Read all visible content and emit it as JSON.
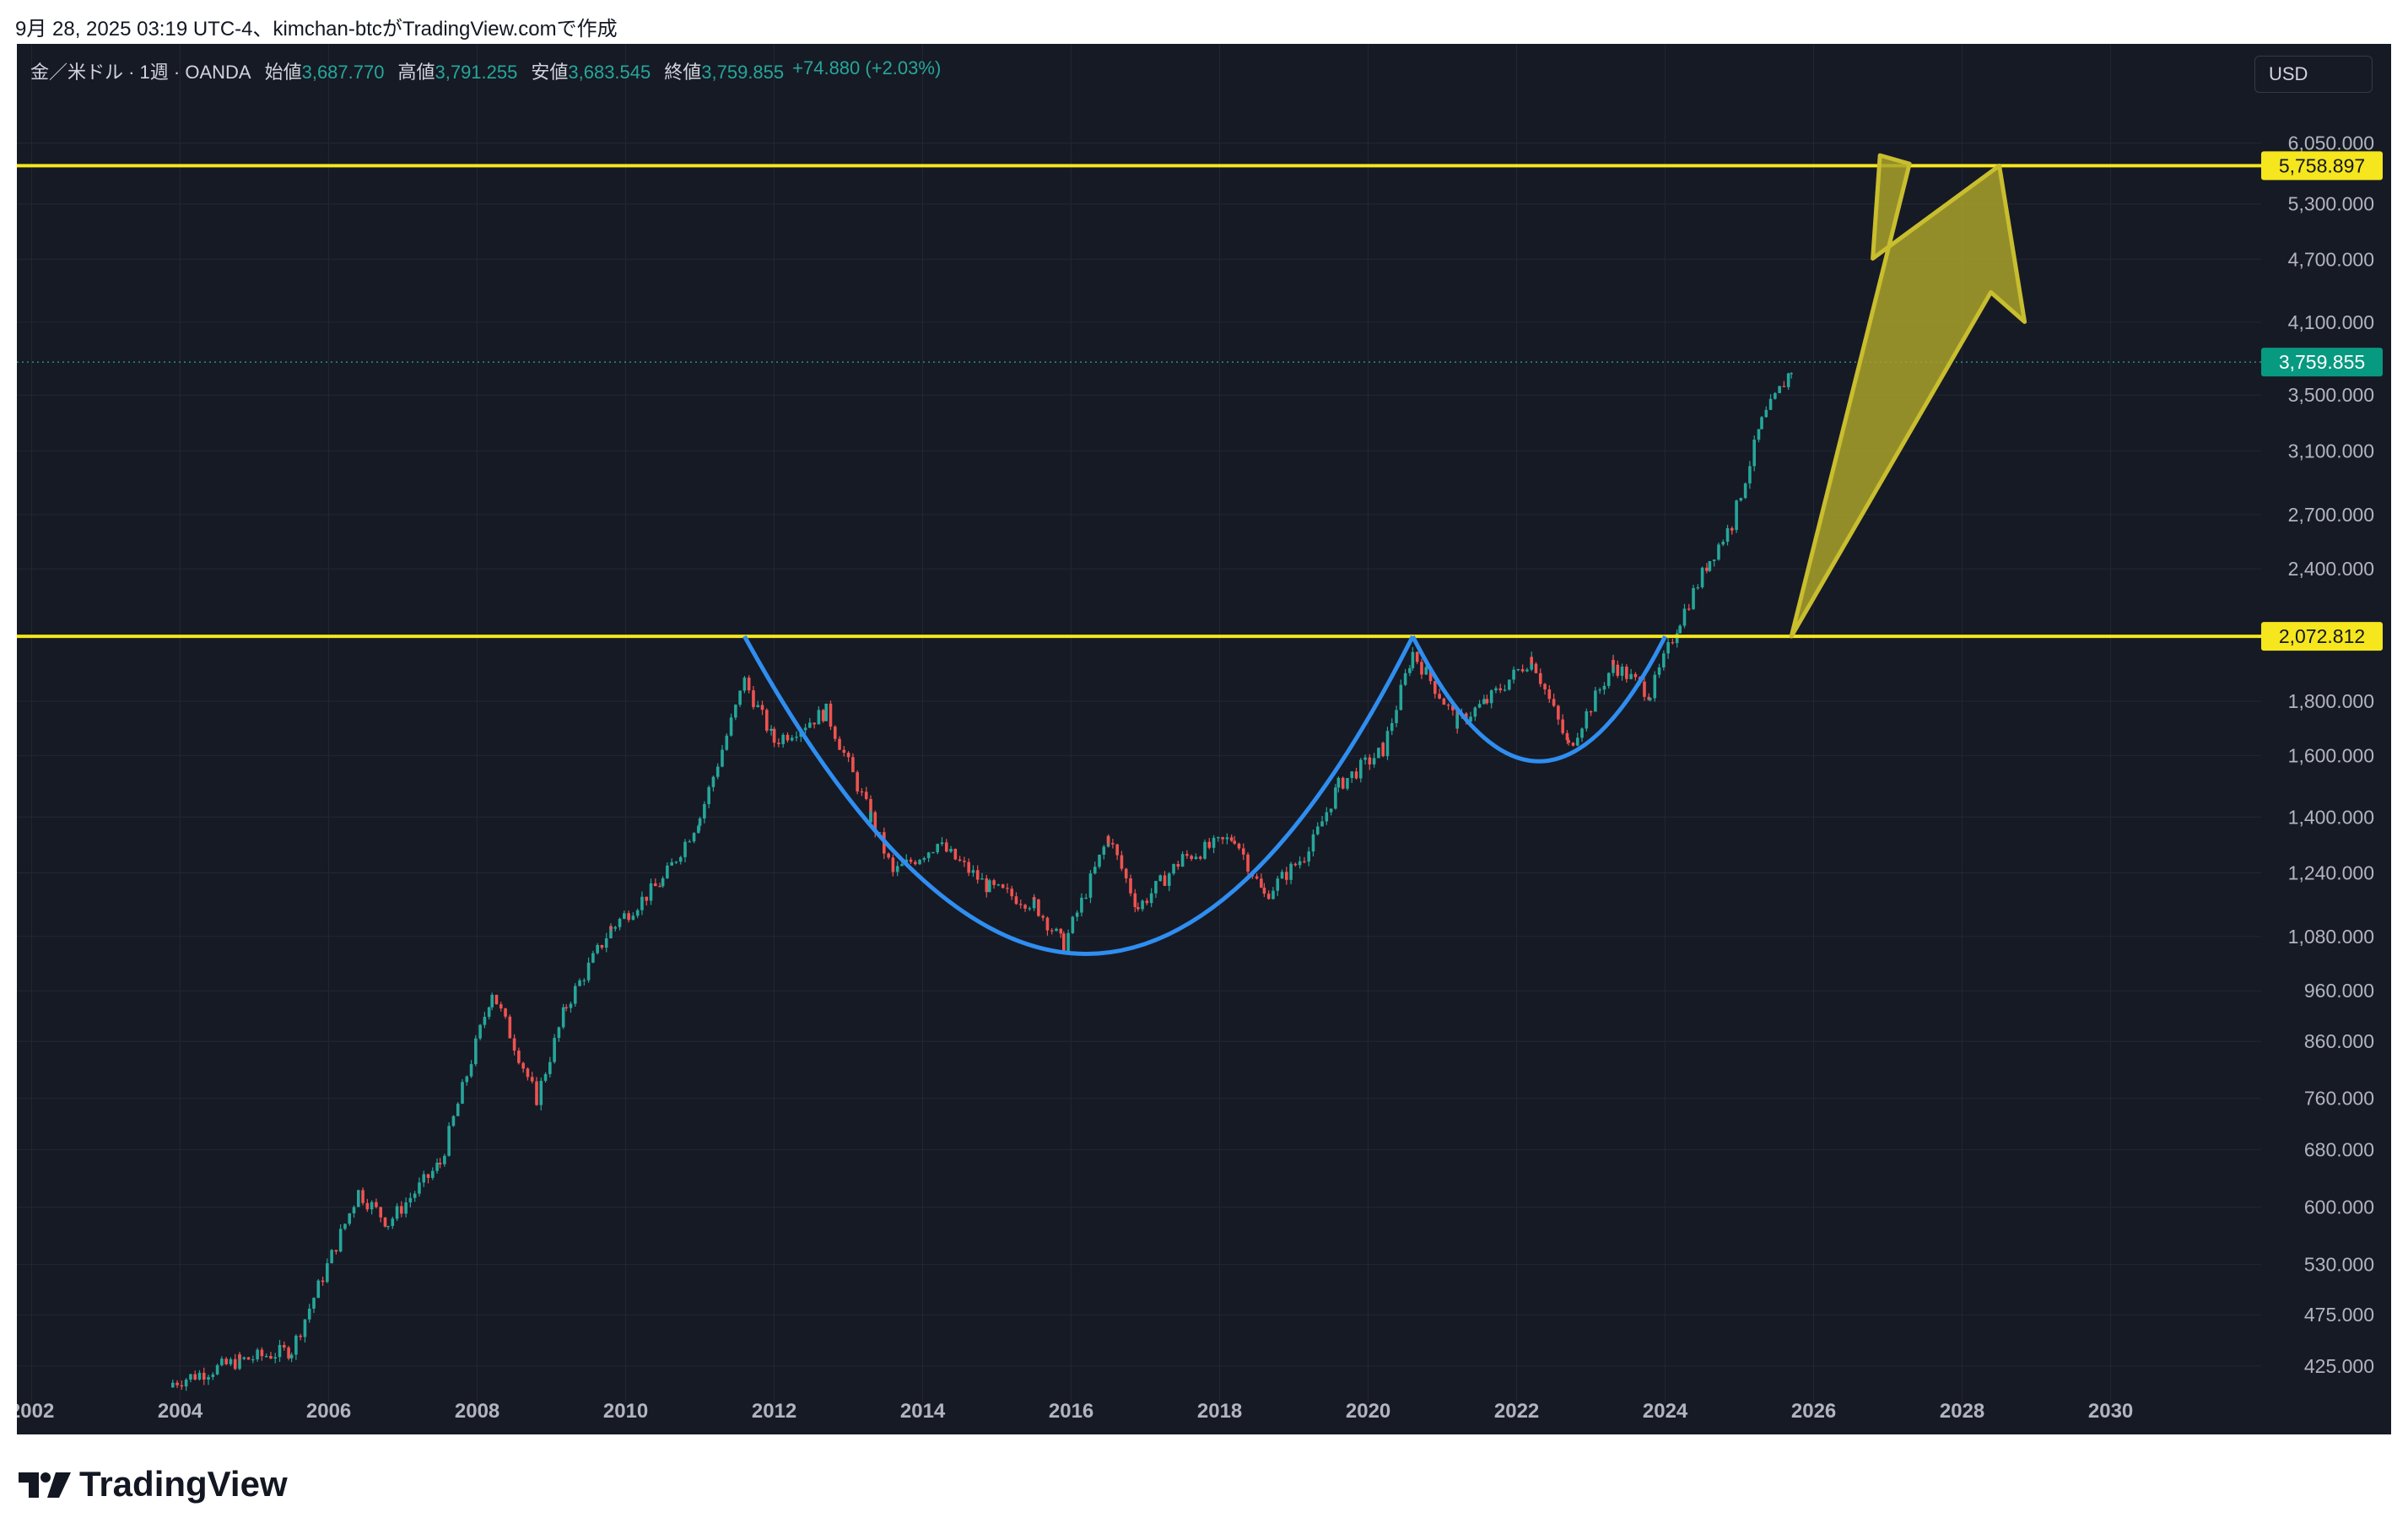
{
  "header": {
    "caption": "9月 28, 2025 03:19 UTC-4、kimchan-btcがTradingView.comで作成"
  },
  "legend": {
    "symbol": "金／米ドル · 1週 · OANDA",
    "open_label": "始値",
    "open": "3,687.770",
    "high_label": "高値",
    "high": "3,791.255",
    "low_label": "安値",
    "low": "3,683.545",
    "close_label": "終値",
    "close": "3,759.855",
    "change": "+74.880 (+2.03%)"
  },
  "currency_button": "USD",
  "footer": {
    "brand": "TradingView"
  },
  "colors": {
    "background": "#161a25",
    "grid": "#232733",
    "up": "#26a69a",
    "down": "#ef5350",
    "yellow_line": "#f5e61e",
    "cup_curve": "#2f8ef0",
    "arrow_fill": "#a9a22a",
    "arrow_stroke": "#c9be2e",
    "axis_text": "#b2b5be",
    "price_badge": "#089981"
  },
  "chart_data": {
    "type": "candlestick",
    "title": "金／米ドル · 1週 · OANDA",
    "scale": "log",
    "x_ticks": [
      "2002",
      "2004",
      "2006",
      "2008",
      "2010",
      "2012",
      "2014",
      "2016",
      "2018",
      "2020",
      "2022",
      "2024",
      "2026",
      "2028",
      "2030"
    ],
    "y_ticks": [
      "6,050.000",
      "5,300.000",
      "4,700.000",
      "4,100.000",
      "3,500.000",
      "3,100.000",
      "2,700.000",
      "2,400.000",
      "1,800.000",
      "1,600.000",
      "1,400.000",
      "1,240.000",
      "1,080.000",
      "960.000",
      "860.000",
      "760.000",
      "680.000",
      "600.000",
      "530.000",
      "475.000",
      "425.000"
    ],
    "y_tick_values": [
      6050,
      5300,
      4700,
      4100,
      3500,
      3100,
      2700,
      2400,
      1800,
      1600,
      1400,
      1240,
      1080,
      960,
      860,
      760,
      680,
      600,
      530,
      475,
      425
    ],
    "ylim": [
      400,
      6600
    ],
    "xlim": [
      2001.8,
      2031.8
    ],
    "price_path": [
      [
        2003.9,
        410
      ],
      [
        2004.8,
        430
      ],
      [
        2005.5,
        440
      ],
      [
        2006.4,
        620
      ],
      [
        2006.8,
        580
      ],
      [
        2007.5,
        660
      ],
      [
        2008.2,
        960
      ],
      [
        2008.8,
        760
      ],
      [
        2009.2,
        930
      ],
      [
        2009.8,
        1100
      ],
      [
        2010.5,
        1220
      ],
      [
        2011.0,
        1400
      ],
      [
        2011.6,
        1880
      ],
      [
        2012.0,
        1650
      ],
      [
        2012.7,
        1760
      ],
      [
        2013.3,
        1400
      ],
      [
        2013.6,
        1240
      ],
      [
        2014.2,
        1320
      ],
      [
        2014.9,
        1200
      ],
      [
        2015.5,
        1160
      ],
      [
        2015.9,
        1060
      ],
      [
        2016.5,
        1340
      ],
      [
        2016.9,
        1150
      ],
      [
        2017.5,
        1280
      ],
      [
        2018.2,
        1340
      ],
      [
        2018.6,
        1180
      ],
      [
        2019.2,
        1300
      ],
      [
        2019.6,
        1500
      ],
      [
        2020.2,
        1620
      ],
      [
        2020.6,
        2000
      ],
      [
        2021.2,
        1720
      ],
      [
        2021.6,
        1800
      ],
      [
        2022.2,
        1980
      ],
      [
        2022.7,
        1630
      ],
      [
        2023.3,
        1950
      ],
      [
        2023.8,
        1830
      ],
      [
        2024.2,
        2150
      ],
      [
        2024.6,
        2450
      ],
      [
        2024.9,
        2650
      ],
      [
        2025.3,
        3300
      ],
      [
        2025.7,
        3700
      ],
      [
        2025.74,
        3759.855
      ]
    ],
    "horizontal_lines": [
      {
        "value": 5758.897,
        "label": "5,758.897"
      },
      {
        "value": 2072.812,
        "label": "2,072.812"
      }
    ],
    "last_price": {
      "value": 3759.855,
      "label": "3,759.855"
    },
    "annotations": {
      "cup_curve": [
        [
          2011.6,
          2072.812
        ],
        [
          2016.2,
          1040
        ],
        [
          2020.6,
          2072.812
        ]
      ],
      "handle_curve": [
        [
          2020.6,
          2072.812
        ],
        [
          2022.3,
          1580
        ],
        [
          2024.0,
          2072.812
        ]
      ],
      "arrow": {
        "from": [
          2025.7,
          2072.812
        ],
        "to": [
          2028.5,
          5758.897
        ]
      }
    }
  }
}
